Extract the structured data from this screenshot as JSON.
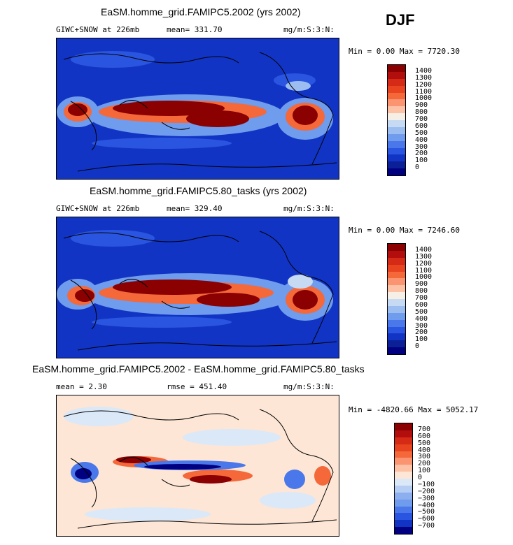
{
  "season": "DJF",
  "panels": [
    {
      "title": "EaSM.homme_grid.FAMIPC5.2002 (yrs 2002)",
      "left_info": "GIWC+SNOW at 226mb",
      "mean_text": "mean= 331.70",
      "units": "mg/m:S:3:N:",
      "minmax": "Min =   0.00 Max = 7720.30",
      "colorbar_labels": [
        "1400",
        "1300",
        "1200",
        "1100",
        "1000",
        "900",
        "800",
        "700",
        "600",
        "500",
        "400",
        "300",
        "200",
        "100",
        "0"
      ]
    },
    {
      "title": "EaSM.homme_grid.FAMIPC5.80_tasks (yrs 2002)",
      "left_info": "GIWC+SNOW at 226mb",
      "mean_text": "mean= 329.40",
      "units": "mg/m:S:3:N:",
      "minmax": "Min =   0.00 Max = 7246.60",
      "colorbar_labels": [
        "1400",
        "1300",
        "1200",
        "1100",
        "1000",
        "900",
        "800",
        "700",
        "600",
        "500",
        "400",
        "300",
        "200",
        "100",
        "0"
      ]
    },
    {
      "title": "EaSM.homme_grid.FAMIPC5.2002 - EaSM.homme_grid.FAMIPC5.80_tasks",
      "left_info": "mean =    2.30",
      "mean_text": "rmse = 451.40",
      "units": "mg/m:S:3:N:",
      "minmax": "Min = -4820.66 Max = 5052.17",
      "colorbar_labels": [
        "700",
        "600",
        "500",
        "400",
        "300",
        "200",
        "100",
        "0",
        "−100",
        "−200",
        "−300",
        "−400",
        "−500",
        "−600",
        "−700"
      ]
    }
  ],
  "colors": {
    "abs_scale": [
      "#8b0000",
      "#b30e0e",
      "#d42a16",
      "#e8441f",
      "#f4683a",
      "#fb9470",
      "#fdc2a5",
      "#f6efe6",
      "#c7daf3",
      "#9cbdf0",
      "#6f9cec",
      "#4a78ea",
      "#2a55e0",
      "#1234c4",
      "#0b1f96",
      "#000080"
    ],
    "diff_scale": [
      "#8b0000",
      "#b30e0e",
      "#d42a16",
      "#e8441f",
      "#f4683a",
      "#fb9470",
      "#fdc2a5",
      "#fde6d6",
      "#dbe8f8",
      "#b6cdf4",
      "#8cb0ef",
      "#6f9cec",
      "#4a78ea",
      "#2a55e0",
      "#1234c4",
      "#000080"
    ]
  }
}
